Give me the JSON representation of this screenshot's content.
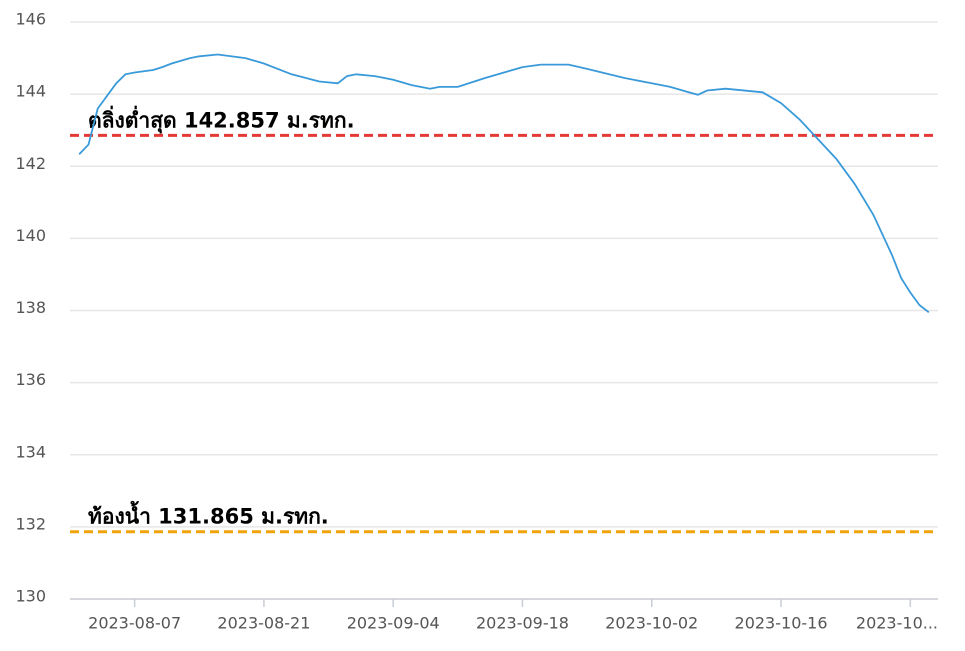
{
  "chart_data": {
    "type": "line",
    "x": [
      "2023-08-01",
      "2023-08-02",
      "2023-08-03",
      "2023-08-05",
      "2023-08-06",
      "2023-08-07",
      "2023-08-09",
      "2023-08-10",
      "2023-08-11",
      "2023-08-13",
      "2023-08-14",
      "2023-08-16",
      "2023-08-19",
      "2023-08-21",
      "2023-08-24",
      "2023-08-27",
      "2023-08-29",
      "2023-08-30",
      "2023-08-31",
      "2023-09-02",
      "2023-09-04",
      "2023-09-06",
      "2023-09-08",
      "2023-09-09",
      "2023-09-11",
      "2023-09-14",
      "2023-09-16",
      "2023-09-18",
      "2023-09-20",
      "2023-09-23",
      "2023-09-25",
      "2023-09-29",
      "2023-10-02",
      "2023-10-04",
      "2023-10-06",
      "2023-10-07",
      "2023-10-08",
      "2023-10-10",
      "2023-10-14",
      "2023-10-16",
      "2023-10-18",
      "2023-10-20",
      "2023-10-22",
      "2023-10-24",
      "2023-10-26",
      "2023-10-28",
      "2023-10-29",
      "2023-10-30",
      "2023-10-31",
      "2023-11-01"
    ],
    "series": [
      {
        "color": "#3a9ad9",
        "values": [
          142.33,
          142.6,
          143.6,
          144.3,
          144.55,
          144.6,
          144.67,
          144.75,
          144.85,
          145.0,
          145.05,
          145.1,
          145.0,
          144.85,
          144.55,
          144.35,
          144.3,
          144.5,
          144.55,
          144.5,
          144.4,
          144.25,
          144.15,
          144.2,
          144.2,
          144.45,
          144.6,
          144.75,
          144.82,
          144.82,
          144.7,
          144.45,
          144.3,
          144.2,
          144.05,
          143.98,
          144.1,
          144.15,
          144.05,
          143.75,
          143.3,
          142.75,
          142.2,
          141.5,
          140.65,
          139.55,
          138.9,
          138.5,
          138.15,
          137.95
        ]
      }
    ],
    "xlim": [
      "2023-07-31",
      "2023-11-02"
    ],
    "xticks": [
      "2023-08-07",
      "2023-08-21",
      "2023-09-04",
      "2023-09-18",
      "2023-10-02",
      "2023-10-16",
      {
        "value": "2023-10-30",
        "label": "2023-10..."
      }
    ],
    "ylim": [
      130,
      146
    ],
    "yticks": [
      130,
      132,
      134,
      136,
      138,
      140,
      142,
      144,
      146
    ],
    "grid": true,
    "reference_lines": [
      {
        "label": "ตลิ่งต่ำสุด 142.857 ม.รทก.",
        "value": 142.857,
        "color": "#e53935"
      },
      {
        "label": "ท้องน้ำ 131.865 ม.รทก.",
        "value": 131.865,
        "color": "#f0a30a"
      }
    ]
  }
}
